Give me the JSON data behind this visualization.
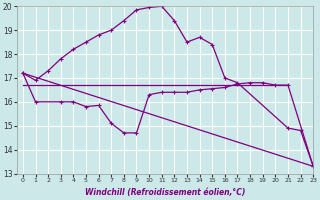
{
  "xlabel": "Windchill (Refroidissement éolien,°C)",
  "bg_color": "#cce8e8",
  "grid_color": "#ffffff",
  "line_color": "#800080",
  "series": {
    "curve_top": {
      "x": [
        0,
        1,
        2,
        3,
        4,
        5,
        6,
        7,
        8,
        9,
        10,
        11,
        12,
        13,
        14,
        15,
        16,
        17,
        21,
        22,
        23
      ],
      "y": [
        17.2,
        16.9,
        17.3,
        17.8,
        18.2,
        18.5,
        18.8,
        19.0,
        19.4,
        19.85,
        19.95,
        20.0,
        19.4,
        18.5,
        18.7,
        18.4,
        17.0,
        16.8,
        14.9,
        14.8,
        13.3
      ]
    },
    "curve_low": {
      "x": [
        0,
        1,
        3,
        4,
        5,
        6,
        7,
        8,
        9,
        10,
        11,
        12,
        13,
        14,
        15,
        16,
        17,
        18,
        19,
        20,
        21,
        23
      ],
      "y": [
        17.2,
        16.0,
        16.0,
        16.0,
        15.8,
        15.85,
        15.1,
        14.7,
        14.7,
        16.3,
        16.4,
        16.4,
        16.4,
        16.5,
        16.55,
        16.6,
        16.75,
        16.8,
        16.8,
        16.7,
        16.7,
        13.3
      ]
    },
    "line_diagonal": {
      "x": [
        0,
        23
      ],
      "y": [
        17.2,
        13.3
      ]
    },
    "line_flat": {
      "x": [
        0,
        21
      ],
      "y": [
        16.7,
        16.7
      ]
    }
  },
  "ylim": [
    13,
    20
  ],
  "xlim": [
    -0.5,
    23
  ],
  "yticks": [
    13,
    14,
    15,
    16,
    17,
    18,
    19,
    20
  ],
  "xticks": [
    0,
    1,
    2,
    3,
    4,
    5,
    6,
    7,
    8,
    9,
    10,
    11,
    12,
    13,
    14,
    15,
    16,
    17,
    18,
    19,
    20,
    21,
    22,
    23
  ]
}
